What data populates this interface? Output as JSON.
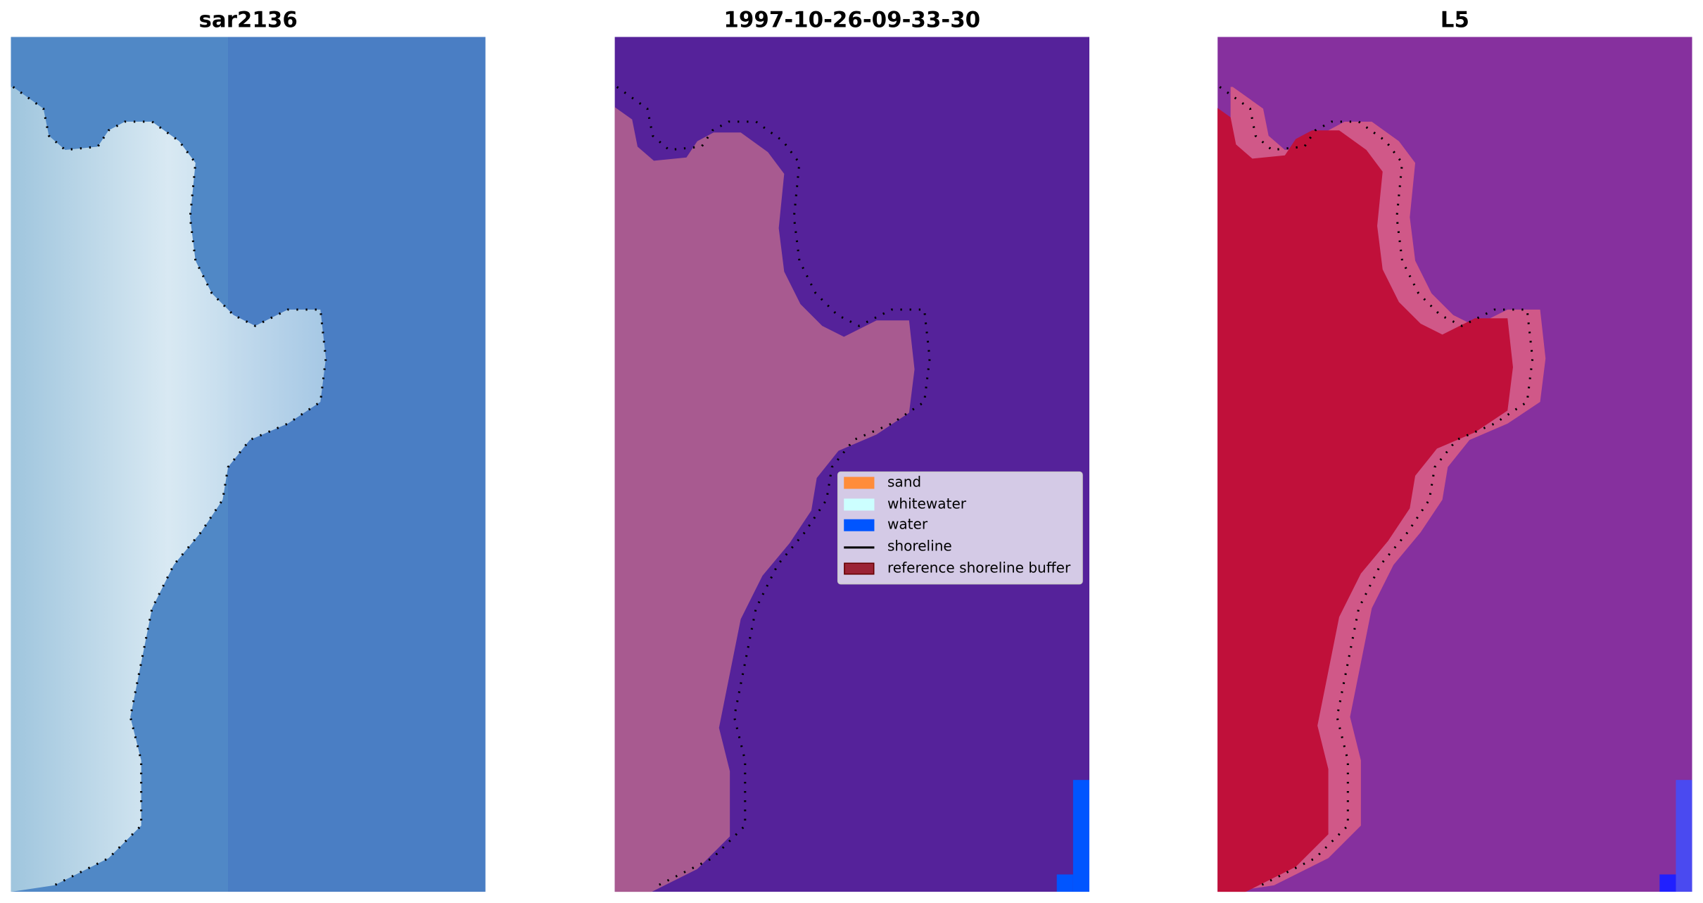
{
  "panels": [
    {
      "title": "sar2136"
    },
    {
      "title": "1997-10-26-09-33-30"
    },
    {
      "title": "L5"
    }
  ],
  "legend": {
    "items": [
      {
        "label": "sand",
        "color": "#ff8c3a",
        "kind": "patch"
      },
      {
        "label": "whitewater",
        "color": "#ccffff",
        "kind": "patch"
      },
      {
        "label": "water",
        "color": "#0055ff",
        "kind": "patch"
      },
      {
        "label": "shoreline",
        "color": "#000000",
        "kind": "line"
      },
      {
        "label": "reference shoreline buffer",
        "color": "#9b2335",
        "kind": "patch"
      }
    ]
  },
  "colors": {
    "water_class": "#55229a",
    "buffer_overlay": "#b0608f",
    "l5_land": "#c0103a",
    "l5_water": "#80289a",
    "sar_water": "#4078c0"
  }
}
